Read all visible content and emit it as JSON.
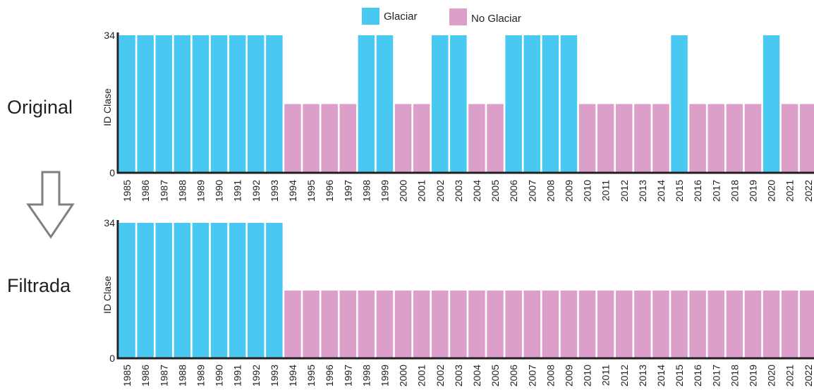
{
  "legend": [
    {
      "label": "Glaciar",
      "color": "#49c8f1"
    },
    {
      "label": "No Glaciar",
      "color": "#dc9fc9"
    }
  ],
  "colors": {
    "Glaciar": "#49c8f1",
    "No Glaciar": "#dc9fc9",
    "axis": "#231f20",
    "arrow": "#808080"
  },
  "rows": {
    "original": "Original",
    "filtrada": "Filtrada"
  },
  "arrow_icon": "down-arrow-icon",
  "chart_data": [
    {
      "type": "bar",
      "panel": "Original",
      "ylabel": "ID Clase",
      "ylim": [
        0,
        34
      ],
      "yticks": [
        0,
        34
      ],
      "categories": [
        "1985",
        "1986",
        "1987",
        "1988",
        "1989",
        "1990",
        "1991",
        "1992",
        "1993",
        "1994",
        "1995",
        "1996",
        "1997",
        "1998",
        "1999",
        "2000",
        "2001",
        "2002",
        "2003",
        "2004",
        "2005",
        "2006",
        "2007",
        "2008",
        "2009",
        "2010",
        "2011",
        "2012",
        "2013",
        "2014",
        "2015",
        "2016",
        "2017",
        "2018",
        "2019",
        "2020",
        "2021",
        "2022"
      ],
      "values": [
        34,
        34,
        34,
        34,
        34,
        34,
        34,
        34,
        34,
        17,
        17,
        17,
        17,
        34,
        34,
        17,
        17,
        34,
        34,
        17,
        17,
        34,
        34,
        34,
        34,
        17,
        17,
        17,
        17,
        17,
        34,
        17,
        17,
        17,
        17,
        34,
        17,
        17
      ],
      "classes": [
        "Glaciar",
        "Glaciar",
        "Glaciar",
        "Glaciar",
        "Glaciar",
        "Glaciar",
        "Glaciar",
        "Glaciar",
        "Glaciar",
        "No Glaciar",
        "No Glaciar",
        "No Glaciar",
        "No Glaciar",
        "Glaciar",
        "Glaciar",
        "No Glaciar",
        "No Glaciar",
        "Glaciar",
        "Glaciar",
        "No Glaciar",
        "No Glaciar",
        "Glaciar",
        "Glaciar",
        "Glaciar",
        "Glaciar",
        "No Glaciar",
        "No Glaciar",
        "No Glaciar",
        "No Glaciar",
        "No Glaciar",
        "Glaciar",
        "No Glaciar",
        "No Glaciar",
        "No Glaciar",
        "No Glaciar",
        "Glaciar",
        "No Glaciar",
        "No Glaciar"
      ]
    },
    {
      "type": "bar",
      "panel": "Filtrada",
      "ylabel": "ID Clase",
      "ylim": [
        0,
        34
      ],
      "yticks": [
        0,
        34
      ],
      "categories": [
        "1985",
        "1986",
        "1987",
        "1988",
        "1989",
        "1990",
        "1991",
        "1992",
        "1993",
        "1994",
        "1995",
        "1996",
        "1997",
        "1998",
        "1999",
        "2000",
        "2001",
        "2002",
        "2003",
        "2004",
        "2005",
        "2006",
        "2007",
        "2008",
        "2009",
        "2010",
        "2011",
        "2012",
        "2013",
        "2014",
        "2015",
        "2016",
        "2017",
        "2018",
        "2019",
        "2020",
        "2021",
        "2022"
      ],
      "values": [
        34,
        34,
        34,
        34,
        34,
        34,
        34,
        34,
        34,
        17,
        17,
        17,
        17,
        17,
        17,
        17,
        17,
        17,
        17,
        17,
        17,
        17,
        17,
        17,
        17,
        17,
        17,
        17,
        17,
        17,
        17,
        17,
        17,
        17,
        17,
        17,
        17,
        17
      ],
      "classes": [
        "Glaciar",
        "Glaciar",
        "Glaciar",
        "Glaciar",
        "Glaciar",
        "Glaciar",
        "Glaciar",
        "Glaciar",
        "Glaciar",
        "No Glaciar",
        "No Glaciar",
        "No Glaciar",
        "No Glaciar",
        "No Glaciar",
        "No Glaciar",
        "No Glaciar",
        "No Glaciar",
        "No Glaciar",
        "No Glaciar",
        "No Glaciar",
        "No Glaciar",
        "No Glaciar",
        "No Glaciar",
        "No Glaciar",
        "No Glaciar",
        "No Glaciar",
        "No Glaciar",
        "No Glaciar",
        "No Glaciar",
        "No Glaciar",
        "No Glaciar",
        "No Glaciar",
        "No Glaciar",
        "No Glaciar",
        "No Glaciar",
        "No Glaciar",
        "No Glaciar",
        "No Glaciar"
      ]
    }
  ]
}
